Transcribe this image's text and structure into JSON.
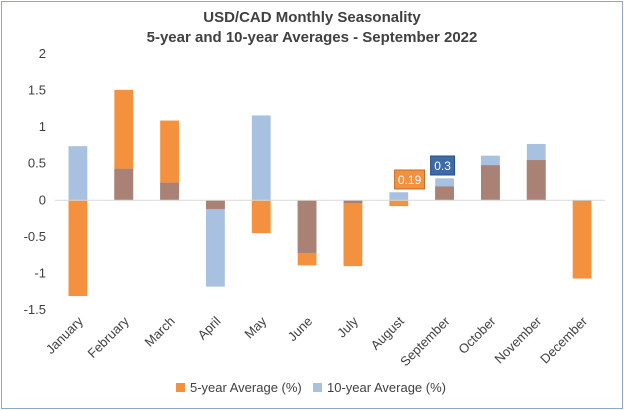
{
  "chart_data": {
    "type": "bar",
    "title": [
      "USD/CAD Monthly Seasonality",
      "5-year and 10-year Averages - September 2022"
    ],
    "categories": [
      "January",
      "February",
      "March",
      "April",
      "May",
      "June",
      "July",
      "August",
      "September",
      "October",
      "November",
      "December"
    ],
    "series": [
      {
        "name": "5-year Average (%)",
        "color": "#f4913e",
        "values": [
          -1.31,
          1.51,
          1.09,
          -0.12,
          -0.45,
          -0.89,
          -0.9,
          -0.08,
          0.19,
          0.48,
          0.55,
          -1.07
        ]
      },
      {
        "name": "10-year Average (%)",
        "color": "#a9c1e0",
        "values": [
          0.74,
          0.43,
          0.24,
          -1.18,
          1.16,
          -0.72,
          -0.04,
          0.11,
          0.3,
          0.61,
          0.77,
          -0.01
        ]
      }
    ],
    "overlap_color": "#a98275",
    "ylim": [
      -1.5,
      2
    ],
    "yticks": [
      "2",
      "1.5",
      "1",
      "0.5",
      "0",
      "-0.5",
      "-1",
      "-1.5"
    ],
    "ytick_values": [
      2,
      1.5,
      1,
      0.5,
      0,
      -0.5,
      -1,
      -1.5
    ],
    "grid": false,
    "legend_position": "bottom",
    "annotations": [
      {
        "label": "0.19",
        "category": "September",
        "series": "5-year Average (%)",
        "color": "#f4913e"
      },
      {
        "label": "0.3",
        "category": "September",
        "series": "10-year Average (%)",
        "color": "#3d6ba6"
      }
    ]
  }
}
